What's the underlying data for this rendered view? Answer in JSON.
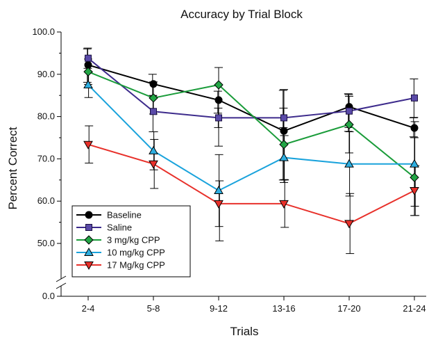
{
  "chart_data": {
    "type": "line",
    "title": "Accuracy by Trial Block",
    "xlabel": "Trials",
    "ylabel": "Percent Correct",
    "categories": [
      "2-4",
      "5-8",
      "9-12",
      "13-16",
      "17-20",
      "21-24"
    ],
    "y_tick_labels": [
      "0.0",
      "50.0",
      "60.0",
      "70.0",
      "80.0",
      "90.0",
      "100.0"
    ],
    "y_ticks": [
      0,
      50,
      60,
      70,
      80,
      90,
      100
    ],
    "axis_break": true,
    "legend_position": "bottom-left",
    "series": [
      {
        "name": "Baseline",
        "marker": "circle",
        "color": "#000000",
        "marker_fill": "#000000",
        "values": [
          92.2,
          87.7,
          83.9,
          76.6,
          82.3,
          77.3
        ],
        "err_upper": [
          96.0,
          90.0,
          86.0,
          86.2,
          85.4,
          79.7
        ],
        "err_lower": [
          88.1,
          84.9,
          80.8,
          65.0,
          76.5,
          75.2
        ]
      },
      {
        "name": "Saline",
        "marker": "square",
        "color": "#3d2b8c",
        "marker_fill": "#5a4aa8",
        "values": [
          93.8,
          81.2,
          79.7,
          79.7,
          81.3,
          84.4
        ],
        "err_upper": [
          96.2,
          85.0,
          82.0,
          82.0,
          85.2,
          88.9
        ],
        "err_lower": [
          91.4,
          76.4,
          77.4,
          77.4,
          77.4,
          79.8
        ]
      },
      {
        "name": "3 mg/kg CPP",
        "marker": "diamond",
        "color": "#1a9c3a",
        "marker_fill": "#22a545",
        "values": [
          90.6,
          84.4,
          87.5,
          73.4,
          78.1,
          65.6
        ],
        "err_upper": [
          93.6,
          88.2,
          91.6,
          86.4,
          84.8,
          75.0
        ],
        "err_lower": [
          87.6,
          80.6,
          73.0,
          64.4,
          71.4,
          56.6
        ]
      },
      {
        "name": "10 mg/kg CPP",
        "marker": "triangle-up",
        "color": "#1aa3dc",
        "marker_fill": "#2eaee0",
        "values": [
          87.5,
          71.9,
          62.5,
          70.3,
          68.8,
          68.8
        ],
        "err_upper": [
          90.5,
          76.4,
          71.0,
          75.5,
          76.4,
          78.8
        ],
        "err_lower": [
          84.5,
          67.4,
          54.0,
          65.1,
          61.2,
          58.8
        ]
      },
      {
        "name": "17 Mg/kg CPP",
        "marker": "triangle-down",
        "color": "#e8302a",
        "marker_fill": "#e8302a",
        "values": [
          73.4,
          68.8,
          59.4,
          59.4,
          54.7,
          62.5
        ],
        "err_upper": [
          77.8,
          74.6,
          64.8,
          65.0,
          61.8,
          68.4
        ],
        "err_lower": [
          69.0,
          63.0,
          50.6,
          53.8,
          47.6,
          56.6
        ]
      }
    ]
  }
}
